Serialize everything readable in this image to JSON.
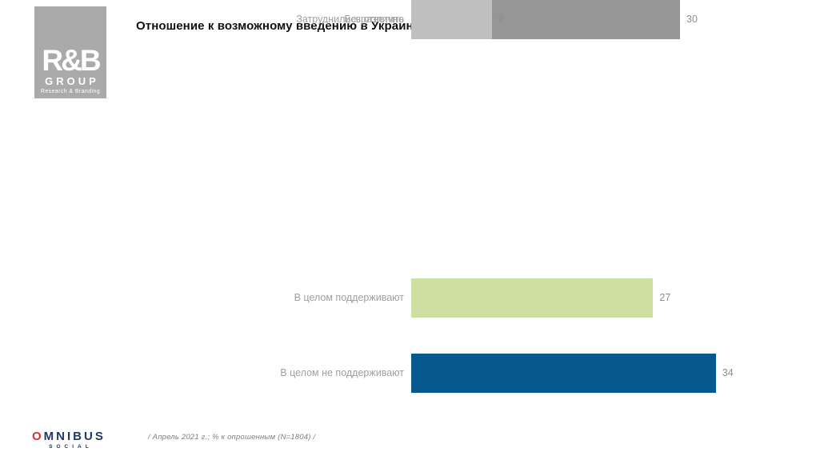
{
  "header": {
    "title": "Отношение к возможному введению в Украине «паспорта вакцинации» от COVID-19"
  },
  "logo": {
    "name": "R&B",
    "group": "GROUP",
    "tagline": "Research & Branding",
    "background_color": "#aaaaaa"
  },
  "chart_data": {
    "type": "bar",
    "orientation": "horizontal",
    "title": "Отношение к возможному введению в Украине «паспорта вакцинации» от COVID-19",
    "categories": [
      "В целом поддерживают",
      "В целом не поддерживают",
      "Безразлично",
      "Затруднились ответить"
    ],
    "values": [
      27,
      34,
      30,
      9
    ],
    "colors": [
      "#cde0a2",
      "#05598e",
      "#969696",
      "#bfbfbf"
    ],
    "value_labels": true,
    "unit": "% к опрошенным",
    "xlim": [
      0,
      45
    ],
    "grid": false,
    "legend": false
  },
  "footer": {
    "brand": {
      "o": "O",
      "rest": "MNIBUS",
      "sub": "SOCIAL",
      "o_color": "#d8312b",
      "text_color": "#1f3864"
    },
    "note": "/ Апрель  2021 г.; % к опрошенным  (N=1804) /"
  }
}
